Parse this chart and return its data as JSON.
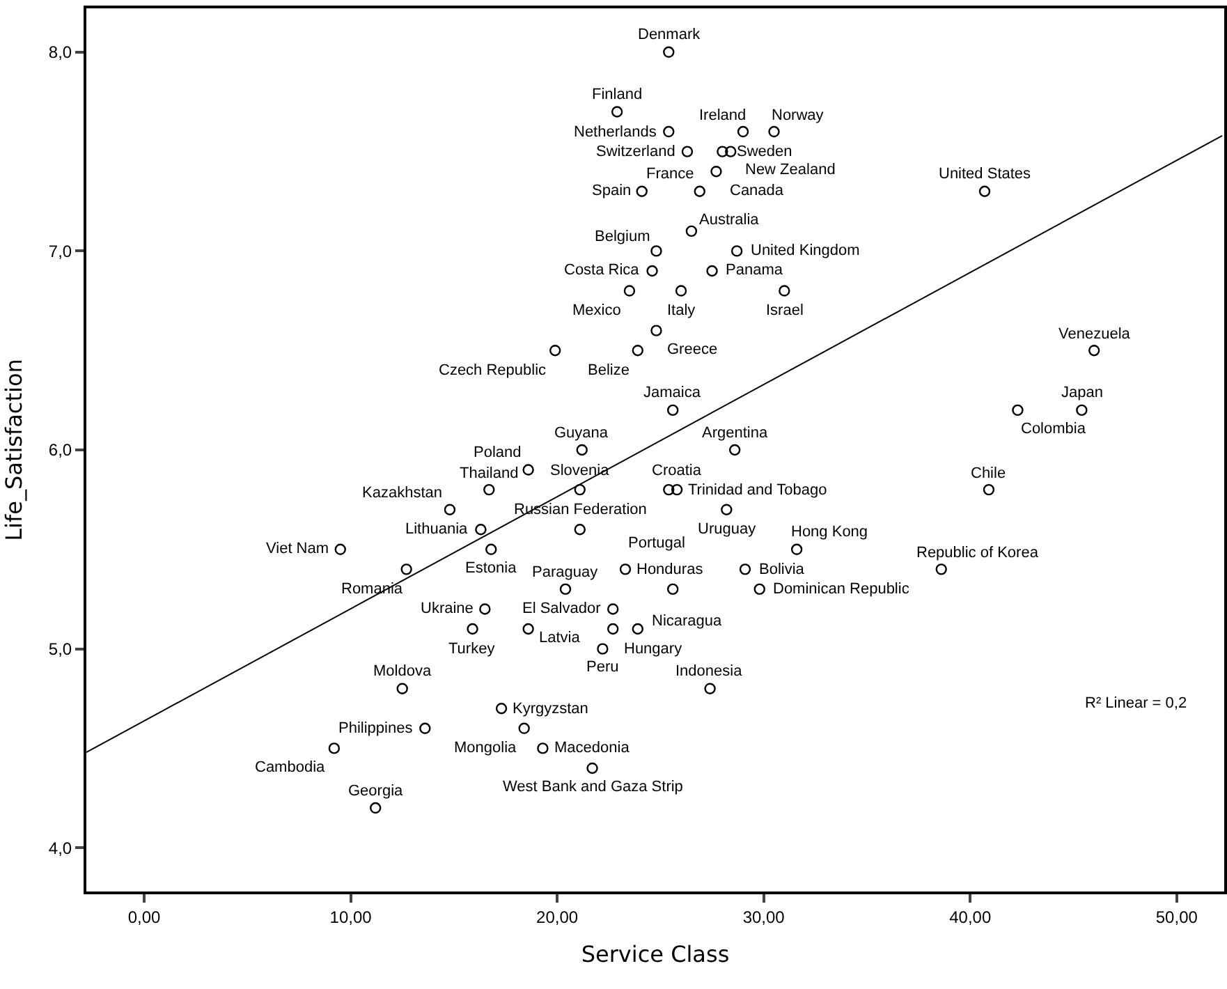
{
  "chart_data": {
    "type": "scatter",
    "xlabel": "Service Class",
    "ylabel": "Life_Satisfaction",
    "xlim": [
      -2.8,
      52.3
    ],
    "ylim": [
      3.78,
      8.22
    ],
    "xticks": [
      {
        "value": 0,
        "label": "0,00"
      },
      {
        "value": 10,
        "label": "10,00"
      },
      {
        "value": 20,
        "label": "20,00"
      },
      {
        "value": 30,
        "label": "30,00"
      },
      {
        "value": 40,
        "label": "40,00"
      },
      {
        "value": 50,
        "label": "50,00"
      }
    ],
    "yticks": [
      {
        "value": 4,
        "label": "4,0"
      },
      {
        "value": 5,
        "label": "5,0"
      },
      {
        "value": 6,
        "label": "6,0"
      },
      {
        "value": 7,
        "label": "7,0"
      },
      {
        "value": 8,
        "label": "8,0"
      }
    ],
    "series": [
      {
        "type": "scatter",
        "color": "#000000",
        "marker": "circle",
        "x": [
          25.4,
          22.9,
          25.4,
          29.0,
          30.5,
          26.3,
          28.0,
          27.7,
          40.7,
          28.4,
          24.1,
          24.8,
          26.5,
          26.9,
          28.7,
          24.6,
          27.5,
          23.5,
          26.0,
          31.0,
          24.8,
          19.9,
          23.9,
          46.0,
          25.6,
          45.4,
          42.3,
          16.7,
          21.2,
          28.6,
          18.6,
          25.8,
          21.1,
          40.9,
          14.8,
          21.1,
          25.4,
          16.3,
          25.6,
          28.2,
          31.6,
          9.5,
          16.8,
          20.4,
          23.3,
          29.1,
          12.7,
          38.6,
          16.5,
          22.7,
          29.8,
          18.6,
          22.2,
          23.9,
          27.4,
          12.5,
          15.9,
          22.7,
          17.3,
          13.6,
          18.4,
          19.3,
          9.2,
          11.2,
          21.7
        ],
        "values": [
          8.0,
          7.7,
          7.6,
          7.6,
          7.6,
          7.5,
          7.5,
          7.4,
          7.3,
          7.5,
          7.3,
          7.0,
          7.1,
          7.3,
          7.0,
          6.9,
          6.9,
          6.8,
          6.8,
          6.8,
          6.6,
          6.5,
          6.5,
          6.5,
          6.2,
          6.2,
          6.2,
          5.8,
          6.0,
          6.0,
          5.9,
          5.8,
          5.8,
          5.8,
          5.7,
          5.6,
          5.8,
          5.6,
          5.3,
          5.7,
          5.5,
          5.5,
          5.5,
          5.3,
          5.4,
          5.4,
          5.4,
          5.4,
          5.2,
          5.2,
          5.3,
          5.1,
          5.0,
          5.1,
          4.8,
          4.8,
          5.1,
          5.1,
          4.7,
          4.6,
          4.6,
          4.5,
          4.5,
          4.2,
          4.4
        ]
      },
      {
        "type": "line",
        "color": "#000000",
        "line_style": "solid",
        "x": [
          -2.8,
          52.2
        ],
        "values": [
          4.48,
          7.58
        ]
      }
    ],
    "annotations": [
      {
        "text": "Denmark",
        "x": 25.4,
        "y": 8.0
      },
      {
        "text": "Finland",
        "x": 22.9,
        "y": 7.7
      },
      {
        "text": "Netherlands",
        "x": 25.4,
        "y": 7.6
      },
      {
        "text": "Ireland",
        "x": 29.0,
        "y": 7.6
      },
      {
        "text": "Norway",
        "x": 30.5,
        "y": 7.6
      },
      {
        "text": "Switzerland",
        "x": 26.3,
        "y": 7.5
      },
      {
        "text": "Sweden",
        "x": 28.0,
        "y": 7.5
      },
      {
        "text": "Canada",
        "x": 27.7,
        "y": 7.4
      },
      {
        "text": "United States",
        "x": 40.7,
        "y": 7.3
      },
      {
        "text": "New Zealand",
        "x": 28.4,
        "y": 7.5
      },
      {
        "text": "Spain",
        "x": 24.1,
        "y": 7.3
      },
      {
        "text": "Belgium",
        "x": 24.8,
        "y": 7.0
      },
      {
        "text": "Australia",
        "x": 26.5,
        "y": 7.1
      },
      {
        "text": "France",
        "x": 26.9,
        "y": 7.3
      },
      {
        "text": "United Kingdom",
        "x": 28.7,
        "y": 7.0
      },
      {
        "text": "Costa Rica",
        "x": 24.6,
        "y": 6.9
      },
      {
        "text": "Panama",
        "x": 27.5,
        "y": 6.9
      },
      {
        "text": "Mexico",
        "x": 23.5,
        "y": 6.8
      },
      {
        "text": "Italy",
        "x": 26.0,
        "y": 6.8
      },
      {
        "text": "Israel",
        "x": 31.0,
        "y": 6.8
      },
      {
        "text": "Greece",
        "x": 24.8,
        "y": 6.6
      },
      {
        "text": "Czech Republic",
        "x": 19.9,
        "y": 6.5
      },
      {
        "text": "Belize",
        "x": 23.9,
        "y": 6.5
      },
      {
        "text": "Venezuela",
        "x": 46.0,
        "y": 6.5
      },
      {
        "text": "Jamaica",
        "x": 25.6,
        "y": 6.2
      },
      {
        "text": "Japan",
        "x": 45.4,
        "y": 6.2
      },
      {
        "text": "Colombia",
        "x": 42.3,
        "y": 6.2
      },
      {
        "text": "Thailand",
        "x": 16.7,
        "y": 5.8
      },
      {
        "text": "Guyana",
        "x": 21.2,
        "y": 6.0
      },
      {
        "text": "Argentina",
        "x": 28.6,
        "y": 6.0
      },
      {
        "text": "Poland",
        "x": 18.6,
        "y": 5.9
      },
      {
        "text": "Croatia",
        "x": 25.8,
        "y": 5.8
      },
      {
        "text": "Slovenia",
        "x": 21.1,
        "y": 5.8
      },
      {
        "text": "Chile",
        "x": 40.9,
        "y": 5.8
      },
      {
        "text": "Kazakhstan",
        "x": 14.8,
        "y": 5.7
      },
      {
        "text": "Russian Federation",
        "x": 21.1,
        "y": 5.6
      },
      {
        "text": "Trinidad and Tobago",
        "x": 25.4,
        "y": 5.8
      },
      {
        "text": "Lithuania",
        "x": 16.3,
        "y": 5.6
      },
      {
        "text": "Portugal",
        "x": 25.6,
        "y": 5.3
      },
      {
        "text": "Uruguay",
        "x": 28.2,
        "y": 5.7
      },
      {
        "text": "Hong Kong",
        "x": 31.6,
        "y": 5.5
      },
      {
        "text": "Viet Nam",
        "x": 9.5,
        "y": 5.5
      },
      {
        "text": "Estonia",
        "x": 16.8,
        "y": 5.5
      },
      {
        "text": "Paraguay",
        "x": 20.4,
        "y": 5.3
      },
      {
        "text": "Honduras",
        "x": 23.3,
        "y": 5.4
      },
      {
        "text": "Bolivia",
        "x": 29.1,
        "y": 5.4
      },
      {
        "text": "Romania",
        "x": 12.7,
        "y": 5.4
      },
      {
        "text": "Republic of Korea",
        "x": 38.6,
        "y": 5.4
      },
      {
        "text": "Ukraine",
        "x": 16.5,
        "y": 5.2
      },
      {
        "text": "El Salvador",
        "x": 22.7,
        "y": 5.2
      },
      {
        "text": "Dominican Republic",
        "x": 29.8,
        "y": 5.3
      },
      {
        "text": "Latvia",
        "x": 18.6,
        "y": 5.1
      },
      {
        "text": "Peru",
        "x": 22.2,
        "y": 5.0
      },
      {
        "text": "Nicaragua",
        "x": 23.9,
        "y": 5.1
      },
      {
        "text": "Indonesia",
        "x": 27.4,
        "y": 4.8
      },
      {
        "text": "Moldova",
        "x": 12.5,
        "y": 4.8
      },
      {
        "text": "Turkey",
        "x": 15.9,
        "y": 5.1
      },
      {
        "text": "Hungary",
        "x": 22.7,
        "y": 5.1
      },
      {
        "text": "Kyrgyzstan",
        "x": 17.3,
        "y": 4.7
      },
      {
        "text": "Philippines",
        "x": 13.6,
        "y": 4.6
      },
      {
        "text": "Mongolia",
        "x": 18.4,
        "y": 4.6
      },
      {
        "text": "Macedonia",
        "x": 19.3,
        "y": 4.5
      },
      {
        "text": "Cambodia",
        "x": 9.2,
        "y": 4.5
      },
      {
        "text": "Georgia",
        "x": 11.2,
        "y": 4.2
      },
      {
        "text": "West Bank and Gaza Strip",
        "x": 21.7,
        "y": 4.4
      },
      "R² Linear = 0,2"
    ]
  }
}
